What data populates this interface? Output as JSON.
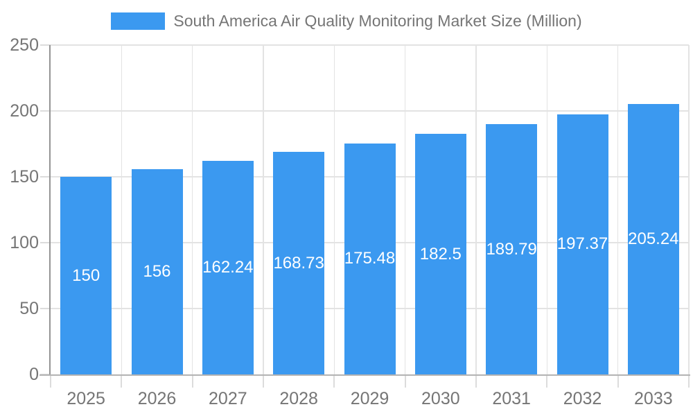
{
  "chart_data": {
    "type": "bar",
    "title": "South America Air Quality Monitoring Market Size (Million)",
    "legend_position": "top",
    "categories": [
      "2025",
      "2026",
      "2027",
      "2028",
      "2029",
      "2030",
      "2031",
      "2032",
      "2033"
    ],
    "values": [
      150,
      156,
      162.24,
      168.73,
      175.48,
      182.5,
      189.79,
      197.37,
      205.24
    ],
    "value_labels": [
      "150",
      "156",
      "162.24",
      "168.73",
      "175.48",
      "182.5",
      "189.79",
      "197.37",
      "205.24"
    ],
    "xlabel": "",
    "ylabel": "",
    "ylim": [
      0,
      250
    ],
    "y_ticks": [
      0,
      50,
      100,
      150,
      200,
      250
    ],
    "grid": true,
    "colors": {
      "bar": "#3B99F0",
      "grid": "#e3e3e3",
      "tick": "#dcdcdc",
      "y_axis": "#949494",
      "x_axis": "#b3b3b3",
      "axis_text": "#757575",
      "value_label_text": "#ffffff",
      "background": "#ffffff"
    }
  }
}
